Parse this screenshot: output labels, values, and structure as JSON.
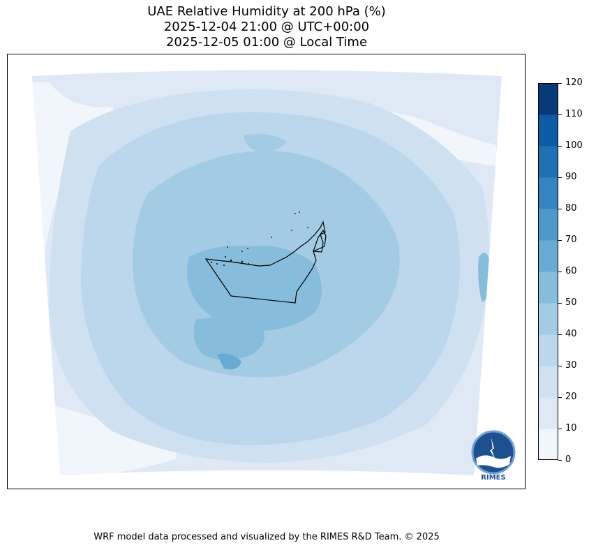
{
  "title": {
    "line1": "UAE Relative Humidity at 200 hPa (%)",
    "line2": "2025-12-04 21:00 @ UTC+00:00",
    "line3": "2025-12-05 01:00 @ Local Time"
  },
  "colorbar": {
    "ticks": [
      "0",
      "10",
      "20",
      "30",
      "40",
      "50",
      "60",
      "70",
      "80",
      "90",
      "100",
      "110",
      "120"
    ],
    "colors": [
      "#f0f6fc",
      "#dfe9f6",
      "#cfe0f1",
      "#bcd7eb",
      "#a3cbe3",
      "#86bcdc",
      "#68aad4",
      "#4f98cb",
      "#3584c1",
      "#2170b4",
      "#0d5aa5",
      "#083a7a"
    ]
  },
  "logo": {
    "text": "RIMES",
    "icon": "rimes-logo-icon"
  },
  "footer": {
    "text": "WRF model data processed and visualized by the RIMES R&D Team. © 2025"
  }
}
